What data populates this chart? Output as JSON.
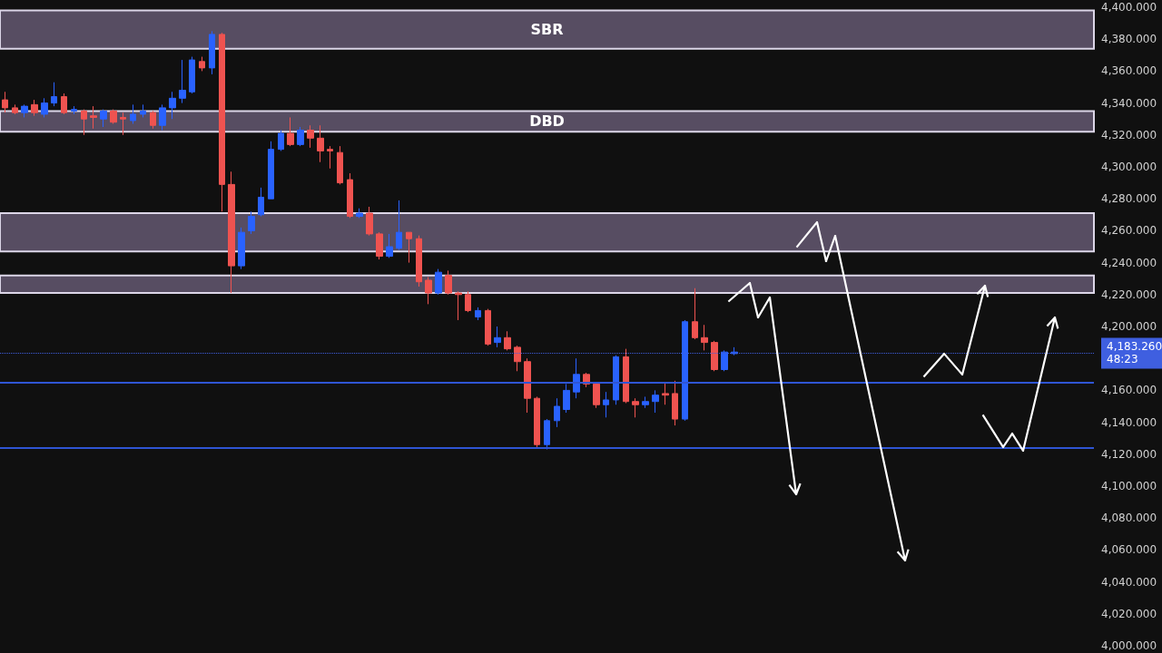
{
  "chart_data": {
    "type": "candlestick",
    "categories": [
      null,
      null,
      null,
      null,
      null,
      null,
      null,
      null,
      null,
      null,
      null,
      null,
      null,
      null,
      null,
      null,
      null,
      null,
      null,
      null,
      null,
      null,
      null,
      null,
      null,
      null,
      null,
      null,
      null,
      null,
      null,
      null,
      null,
      null,
      null,
      null,
      null,
      null,
      null,
      null,
      null,
      null,
      null,
      null,
      null,
      null,
      null,
      null,
      null,
      null,
      null,
      null,
      null,
      null,
      null,
      null,
      null,
      null,
      null,
      null,
      null,
      null,
      null,
      null,
      null,
      null,
      null,
      null,
      null,
      null,
      null,
      null,
      null,
      null,
      null,
      null,
      null,
      null,
      null,
      null,
      null,
      null,
      null,
      null,
      null,
      null,
      null,
      null,
      null,
      null,
      null,
      null,
      null,
      null,
      null,
      null,
      null,
      null,
      null,
      null,
      null,
      null,
      null,
      null,
      null,
      null,
      null,
      null,
      null,
      null,
      null
    ],
    "ohlc": [
      [
        4342,
        4347,
        4334,
        4337
      ],
      [
        4337,
        4339,
        4333,
        4334
      ],
      [
        4334,
        4339,
        4331,
        4338
      ],
      [
        4339,
        4342,
        4332,
        4334
      ],
      [
        4333,
        4343,
        4331,
        4340
      ],
      [
        4340,
        4353,
        4338,
        4344
      ],
      [
        4344,
        4346,
        4333,
        4334
      ],
      [
        4335,
        4338,
        4333,
        4336
      ],
      [
        4335,
        4336,
        4320,
        4330
      ],
      [
        4332,
        4338,
        4324,
        4331
      ],
      [
        4330,
        4336,
        4325,
        4335
      ],
      [
        4335,
        4336,
        4327,
        4328
      ],
      [
        4331,
        4334,
        4320,
        4330
      ],
      [
        4329,
        4339,
        4327,
        4333
      ],
      [
        4333,
        4339,
        4331,
        4335
      ],
      [
        4334,
        4335,
        4324,
        4326
      ],
      [
        4326,
        4339,
        4323,
        4337
      ],
      [
        4337,
        4347,
        4330,
        4343
      ],
      [
        4343,
        4367,
        4340,
        4348
      ],
      [
        4347,
        4369,
        4346,
        4367
      ],
      [
        4366,
        4369,
        4360,
        4362
      ],
      [
        4362,
        4385,
        4358,
        4383
      ],
      [
        4383,
        4384,
        4272,
        4289
      ],
      [
        4289,
        4297,
        4221,
        4238
      ],
      [
        4238,
        4262,
        4236,
        4259
      ],
      [
        4260,
        4272,
        4258,
        4269
      ],
      [
        4270,
        4287,
        4269,
        4281
      ],
      [
        4280,
        4316,
        4280,
        4311
      ],
      [
        4311,
        4323,
        4310,
        4321
      ],
      [
        4321,
        4331,
        4313,
        4314
      ],
      [
        4314,
        4325,
        4313,
        4323
      ],
      [
        4323,
        4326,
        4312,
        4318
      ],
      [
        4318,
        4326,
        4303,
        4310
      ],
      [
        4311,
        4313,
        4299,
        4310
      ],
      [
        4309,
        4313,
        4289,
        4290
      ],
      [
        4292,
        4296,
        4268,
        4269
      ],
      [
        4269,
        4274,
        4268,
        4271
      ],
      [
        4271,
        4275,
        4257,
        4258
      ],
      [
        4258,
        4259,
        4242,
        4244
      ],
      [
        4244,
        4258,
        4243,
        4250
      ],
      [
        4249,
        4279,
        4248,
        4259
      ],
      [
        4259,
        4259,
        4240,
        4255
      ],
      [
        4255,
        4257,
        4225,
        4228
      ],
      [
        4229,
        4231,
        4214,
        4221
      ],
      [
        4221,
        4236,
        4220,
        4234
      ],
      [
        4232,
        4235,
        4220,
        4221
      ],
      [
        4221,
        4222,
        4204,
        4220
      ],
      [
        4220,
        4222,
        4209,
        4210
      ],
      [
        4206,
        4212,
        4204,
        4210
      ],
      [
        4210,
        4211,
        4188,
        4189
      ],
      [
        4190,
        4200,
        4187,
        4193
      ],
      [
        4193,
        4197,
        4185,
        4186
      ],
      [
        4187,
        4188,
        4172,
        4178
      ],
      [
        4178,
        4180,
        4146,
        4155
      ],
      [
        4155,
        4156,
        4124,
        4126
      ],
      [
        4126,
        4142,
        4123,
        4141
      ],
      [
        4141,
        4155,
        4137,
        4150
      ],
      [
        4148,
        4164,
        4146,
        4160
      ],
      [
        4159,
        4180,
        4155,
        4170
      ],
      [
        4170,
        4171,
        4162,
        4164
      ],
      [
        4164,
        4165,
        4149,
        4151
      ],
      [
        4151,
        4159,
        4143,
        4154
      ],
      [
        4154,
        4182,
        4151,
        4181
      ],
      [
        4181,
        4186,
        4152,
        4153
      ],
      [
        4153,
        4155,
        4143,
        4151
      ],
      [
        4151,
        4156,
        4149,
        4153
      ],
      [
        4153,
        4160,
        4146,
        4157
      ],
      [
        4158,
        4165,
        4151,
        4157
      ],
      [
        4158,
        4166,
        4138,
        4142
      ],
      [
        4142,
        4204,
        4141,
        4203
      ],
      [
        4203,
        4224,
        4192,
        4193
      ],
      [
        4193,
        4201,
        4185,
        4190
      ],
      [
        4190,
        4191,
        4172,
        4173
      ],
      [
        4173,
        4185,
        4172,
        4184
      ],
      [
        4183,
        4187,
        4182,
        4184
      ],
      null,
      null,
      null,
      null,
      null,
      null,
      null,
      null,
      null,
      null,
      null,
      null,
      null,
      null,
      null,
      null,
      null,
      null,
      null,
      null,
      null,
      null,
      null,
      null,
      null,
      null,
      null,
      null,
      null,
      null,
      null,
      null,
      null,
      null,
      null,
      null
    ],
    "colors": [
      "#ef5350",
      "#ef5350",
      "#2962ff",
      "#ef5350",
      "#2962ff",
      "#2962ff",
      "#ef5350",
      "#2962ff",
      "#ef5350",
      "#ef5350",
      "#2962ff",
      "#ef5350",
      "#ef5350",
      "#2962ff",
      "#2962ff",
      "#ef5350",
      "#2962ff",
      "#2962ff",
      "#2962ff",
      "#2962ff",
      "#ef5350",
      "#2962ff",
      "#ef5350",
      "#ef5350",
      "#2962ff",
      "#2962ff",
      "#2962ff",
      "#2962ff",
      "#2962ff",
      "#ef5350",
      "#2962ff",
      "#ef5350",
      "#ef5350",
      "#ef5350",
      "#ef5350",
      "#ef5350",
      "#2962ff",
      "#ef5350",
      "#ef5350",
      "#2962ff",
      "#2962ff",
      "#ef5350",
      "#ef5350",
      "#ef5350",
      "#2962ff",
      "#ef5350",
      "#ef5350",
      "#ef5350",
      "#2962ff",
      "#ef5350",
      "#2962ff",
      "#ef5350",
      "#ef5350",
      "#ef5350",
      "#ef5350",
      "#2962ff",
      "#2962ff",
      "#2962ff",
      "#2962ff",
      "#ef5350",
      "#ef5350",
      "#2962ff",
      "#2962ff",
      "#ef5350",
      "#ef5350",
      "#2962ff",
      "#2962ff",
      "#ef5350",
      "#ef5350",
      "#2962ff",
      "#ef5350",
      "#ef5350",
      "#ef5350",
      "#2962ff",
      "#2962ff",
      null,
      null,
      null,
      null,
      null,
      null,
      null,
      null,
      null,
      null,
      null,
      null,
      null,
      null,
      null,
      null,
      null,
      null,
      null,
      null,
      null,
      null,
      null,
      null,
      null,
      null,
      null,
      null,
      null,
      null,
      null,
      null,
      null,
      null,
      null,
      null
    ],
    "ylim": [
      4000,
      4400
    ],
    "yticks": [
      {
        "value": 4000,
        "label": "4,000.000"
      },
      {
        "value": 4020,
        "label": "4,020.000"
      },
      {
        "value": 4040,
        "label": "4,040.000"
      },
      {
        "value": 4060,
        "label": "4,060.000"
      },
      {
        "value": 4080,
        "label": "4,080.000"
      },
      {
        "value": 4100,
        "label": "4,100.000"
      },
      {
        "value": 4120,
        "label": "4,120.000"
      },
      {
        "value": 4140,
        "label": "4,140.000"
      },
      {
        "value": 4160,
        "label": "4,160.000"
      },
      {
        "value": 4200,
        "label": "4,200.000"
      },
      {
        "value": 4220,
        "label": "4,220.000"
      },
      {
        "value": 4240,
        "label": "4,240.000"
      },
      {
        "value": 4260,
        "label": "4,260.000"
      },
      {
        "value": 4280,
        "label": "4,280.000"
      },
      {
        "value": 4300,
        "label": "4,300.000"
      },
      {
        "value": 4320,
        "label": "4,320.000"
      },
      {
        "value": 4340,
        "label": "4,340.000"
      },
      {
        "value": 4360,
        "label": "4,360.000"
      },
      {
        "value": 4380,
        "label": "4,380.000"
      },
      {
        "value": 4400,
        "label": "4,400.000"
      }
    ],
    "bands": [
      {
        "axis": "y",
        "from": 4374,
        "to": 4398,
        "label": "SBR",
        "color": "#574d62"
      },
      {
        "axis": "y",
        "from": 4322,
        "to": 4335,
        "label": "DBD",
        "color": "#574d62"
      },
      {
        "axis": "y",
        "from": 4247,
        "to": 4271,
        "color": "#574d62"
      },
      {
        "axis": "y",
        "from": 4221,
        "to": 4232,
        "color": "#574d62"
      }
    ],
    "ref_lines": [
      {
        "axis": "y",
        "value": 4165,
        "color": "#2f55d4",
        "line_style": "solid"
      },
      {
        "axis": "y",
        "value": 4124,
        "color": "#2f55d4",
        "line_style": "solid"
      },
      {
        "axis": "y",
        "value": 4183.26,
        "label": "4,183.260\n48:23",
        "color": "#3f5fe0",
        "line_style": "dotted"
      }
    ],
    "grid": false,
    "tick_labels": "y"
  }
}
